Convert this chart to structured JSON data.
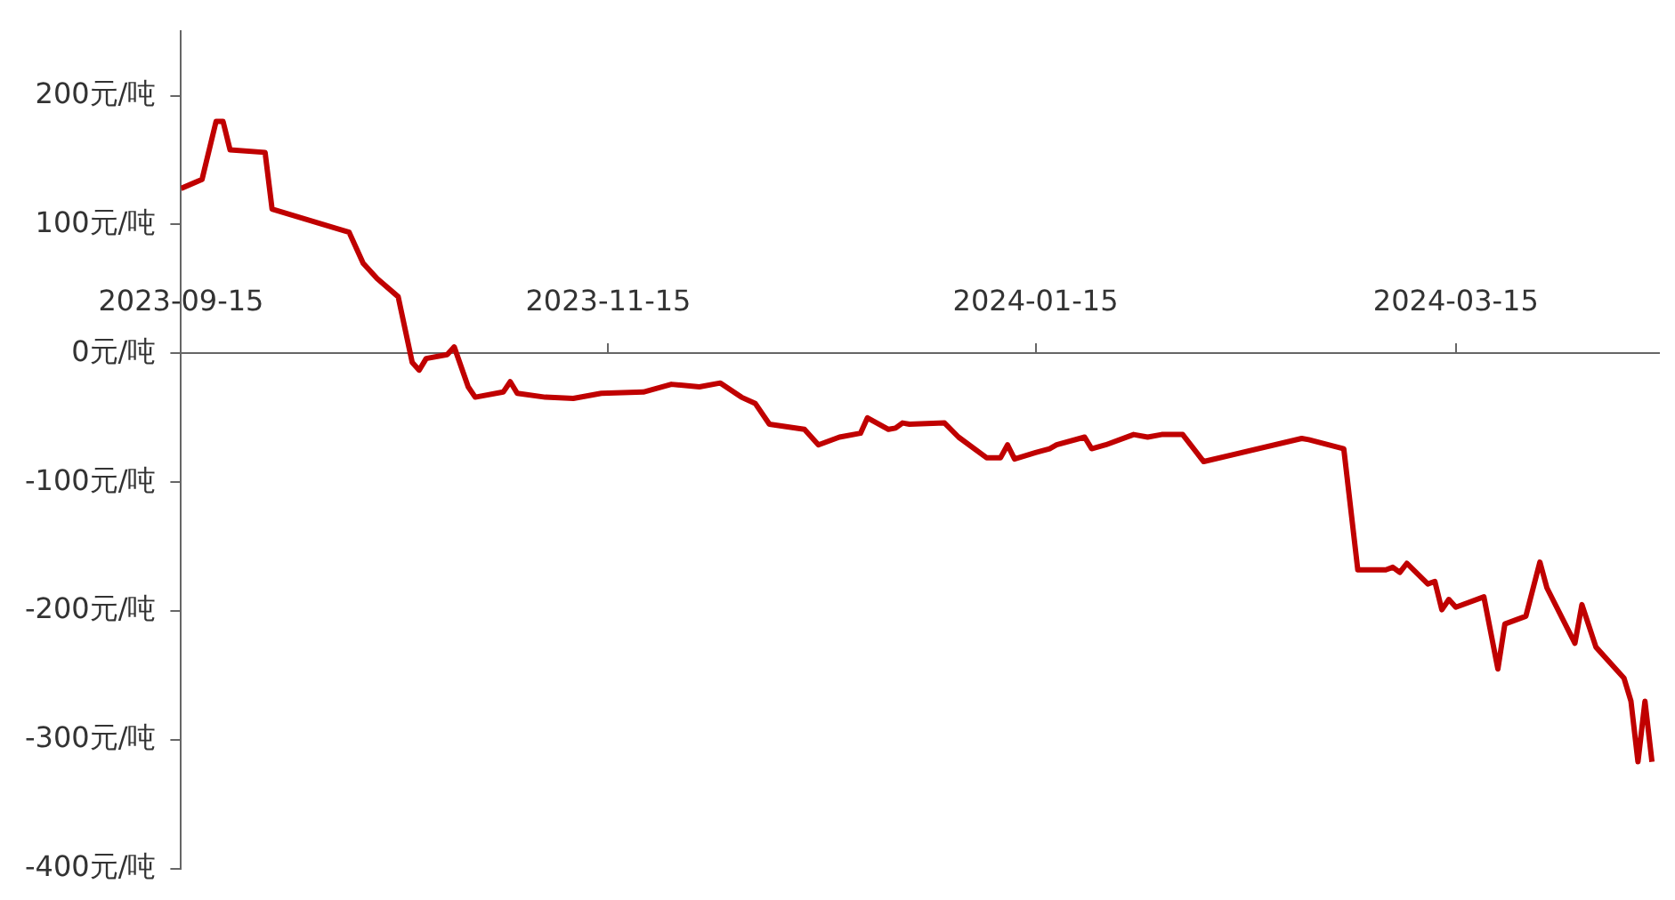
{
  "chart_data": {
    "type": "line",
    "x": [
      "2023-09-15",
      "2023-09-18",
      "2023-09-20",
      "2023-09-21",
      "2023-09-22",
      "2023-09-27",
      "2023-09-28",
      "2023-10-09",
      "2023-10-11",
      "2023-10-13",
      "2023-10-16",
      "2023-10-18",
      "2023-10-19",
      "2023-10-20",
      "2023-10-23",
      "2023-10-24",
      "2023-10-26",
      "2023-10-27",
      "2023-10-31",
      "2023-11-01",
      "2023-11-02",
      "2023-11-06",
      "2023-11-10",
      "2023-11-14",
      "2023-11-20",
      "2023-11-24",
      "2023-11-28",
      "2023-12-01",
      "2023-12-04",
      "2023-12-06",
      "2023-12-08",
      "2023-12-13",
      "2023-12-15",
      "2023-12-18",
      "2023-12-21",
      "2023-12-22",
      "2023-12-25",
      "2023-12-26",
      "2023-12-27",
      "2023-12-28",
      "2024-01-02",
      "2024-01-04",
      "2024-01-08",
      "2024-01-10",
      "2024-01-11",
      "2024-01-12",
      "2024-01-15",
      "2024-01-17",
      "2024-01-18",
      "2024-01-22",
      "2024-01-23",
      "2024-01-25",
      "2024-01-29",
      "2024-01-31",
      "2024-02-02",
      "2024-02-05",
      "2024-02-08",
      "2024-02-22",
      "2024-02-23",
      "2024-02-28",
      "2024-03-01",
      "2024-03-05",
      "2024-03-06",
      "2024-03-07",
      "2024-03-08",
      "2024-03-11",
      "2024-03-12",
      "2024-03-13",
      "2024-03-14",
      "2024-03-15",
      "2024-03-19",
      "2024-03-21",
      "2024-03-22",
      "2024-03-25",
      "2024-03-27",
      "2024-03-28",
      "2024-04-01",
      "2024-04-02",
      "2024-04-04",
      "2024-04-08",
      "2024-04-09",
      "2024-04-10",
      "2024-04-11",
      "2024-04-12"
    ],
    "series": [
      {
        "color": "#c00000",
        "values": [
          128,
          135,
          180,
          180,
          158,
          156,
          112,
          94,
          70,
          58,
          44,
          -7,
          -13,
          -4,
          -1,
          5,
          -26,
          -34,
          -30,
          -22,
          -31,
          -34,
          -35,
          -31,
          -30,
          -24,
          -26,
          -23,
          -34,
          -39,
          -55,
          -59,
          -71,
          -65,
          -62,
          -50,
          -59,
          -58,
          -54,
          -55,
          -54,
          -65,
          -81,
          -81,
          -71,
          -82,
          -77,
          -74,
          -71,
          -65,
          -74,
          -71,
          -63,
          -65,
          -63,
          -63,
          -84,
          -66,
          -67,
          -74,
          -168,
          -168,
          -166,
          -170,
          -163,
          -179,
          -177,
          -199,
          -191,
          -197,
          -189,
          -245,
          -210,
          -204,
          -162,
          -182,
          -225,
          -195,
          -228,
          -252,
          -270,
          -317,
          -270,
          -317
        ]
      }
    ],
    "xlim": [
      "2023-09-15",
      "2024-04-13"
    ],
    "xticks": [
      "2023-09-15",
      "2023-11-15",
      "2024-01-15",
      "2024-03-15"
    ],
    "ylim": [
      -400,
      250
    ],
    "yticks": [
      {
        "value": 200,
        "label": "200元/吨"
      },
      {
        "value": 100,
        "label": "100元/吨"
      },
      {
        "value": 0,
        "label": "0元/吨"
      },
      {
        "value": -100,
        "label": "-100元/吨"
      },
      {
        "value": -200,
        "label": "-200元/吨"
      },
      {
        "value": -300,
        "label": "-300元/吨"
      },
      {
        "value": -400,
        "label": "-400元/吨"
      }
    ]
  }
}
